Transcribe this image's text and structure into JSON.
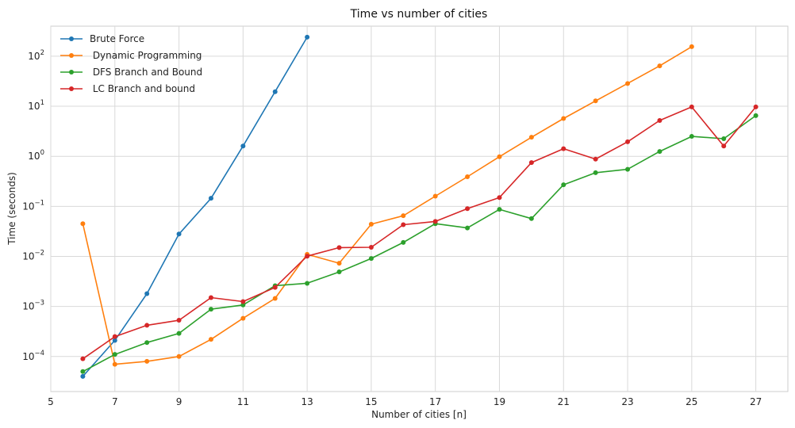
{
  "chart_data": {
    "type": "line",
    "title": "Time vs number of cities",
    "xlabel": "Number of cities [n]",
    "ylabel": "Time (seconds)",
    "xlim": [
      5,
      28
    ],
    "ylim_log10": [
      -4.7,
      2.6
    ],
    "yscale": "log",
    "grid": true,
    "legend_position": "top-left",
    "x_ticks": [
      5,
      7,
      9,
      11,
      13,
      15,
      17,
      19,
      21,
      23,
      25,
      27
    ],
    "y_ticks": [
      {
        "exp": -4,
        "mantissa": "10",
        "power": "−4"
      },
      {
        "exp": -3,
        "mantissa": "10",
        "power": "−3"
      },
      {
        "exp": -2,
        "mantissa": "10",
        "power": "−2"
      },
      {
        "exp": -1,
        "mantissa": "10",
        "power": "−1"
      },
      {
        "exp": 0,
        "mantissa": "10",
        "power": "0"
      },
      {
        "exp": 1,
        "mantissa": "10",
        "power": "1"
      },
      {
        "exp": 2,
        "mantissa": "10",
        "power": "2"
      }
    ],
    "series": [
      {
        "name": "Brute Force",
        "color": "#1f77b4",
        "x": [
          6,
          7,
          8,
          9,
          10,
          11,
          12,
          13
        ],
        "y": [
          4e-05,
          0.00021,
          0.0018,
          0.028,
          0.145,
          1.6,
          19.5,
          240
        ]
      },
      {
        "name": " Dynamic Programming",
        "color": "#ff7f0e",
        "x": [
          6,
          7,
          8,
          9,
          10,
          11,
          12,
          13,
          14,
          15,
          16,
          17,
          18,
          19,
          20,
          21,
          22,
          23,
          24,
          25
        ],
        "y": [
          0.045,
          7e-05,
          8e-05,
          0.0001,
          0.00022,
          0.00058,
          0.00145,
          0.011,
          0.0073,
          0.044,
          0.065,
          0.16,
          0.39,
          0.98,
          2.4,
          5.7,
          12.8,
          28.5,
          64,
          155
        ]
      },
      {
        "name": " DFS Branch and Bound",
        "color": "#2ca02c",
        "x": [
          6,
          7,
          8,
          9,
          10,
          11,
          12,
          13,
          14,
          15,
          16,
          17,
          18,
          19,
          20,
          21,
          22,
          23,
          24,
          25,
          26,
          27
        ],
        "y": [
          5e-05,
          0.00011,
          0.00019,
          0.00029,
          0.00088,
          0.00107,
          0.0026,
          0.0029,
          0.0049,
          0.0091,
          0.019,
          0.045,
          0.037,
          0.087,
          0.057,
          0.27,
          0.47,
          0.55,
          1.25,
          2.5,
          2.25,
          6.5
        ]
      },
      {
        "name": " LC Branch and bound",
        "color": "#d62728",
        "x": [
          6,
          7,
          8,
          9,
          10,
          11,
          12,
          13,
          14,
          15,
          16,
          17,
          18,
          19,
          20,
          21,
          22,
          23,
          24,
          25,
          26,
          27
        ],
        "y": [
          9e-05,
          0.00025,
          0.00042,
          0.00053,
          0.0015,
          0.00125,
          0.0024,
          0.0101,
          0.015,
          0.0152,
          0.043,
          0.05,
          0.09,
          0.15,
          0.75,
          1.42,
          0.88,
          1.95,
          5.2,
          9.7,
          1.6,
          9.7
        ]
      }
    ]
  }
}
